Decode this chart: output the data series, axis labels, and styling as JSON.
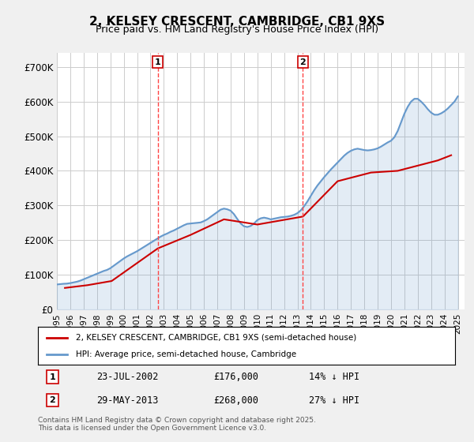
{
  "title": "2, KELSEY CRESCENT, CAMBRIDGE, CB1 9XS",
  "subtitle": "Price paid vs. HM Land Registry's House Price Index (HPI)",
  "ylabel_ticks": [
    "£0",
    "£100K",
    "£200K",
    "£300K",
    "£400K",
    "£500K",
    "£600K",
    "£700K"
  ],
  "ytick_values": [
    0,
    100000,
    200000,
    300000,
    400000,
    500000,
    600000,
    700000
  ],
  "ylim": [
    0,
    740000
  ],
  "xlim_start": 1995.0,
  "xlim_end": 2025.5,
  "bg_color": "#f0f0f0",
  "plot_bg_color": "#ffffff",
  "grid_color": "#cccccc",
  "red_line_color": "#cc0000",
  "blue_line_color": "#6699cc",
  "vline_color": "#ff4444",
  "marker1_x": 2002.55,
  "marker2_x": 2013.41,
  "legend_label_red": "2, KELSEY CRESCENT, CAMBRIDGE, CB1 9XS (semi-detached house)",
  "legend_label_blue": "HPI: Average price, semi-detached house, Cambridge",
  "annotation1_num": "1",
  "annotation1_date": "23-JUL-2002",
  "annotation1_price": "£176,000",
  "annotation1_hpi": "14% ↓ HPI",
  "annotation2_num": "2",
  "annotation2_date": "29-MAY-2013",
  "annotation2_price": "£268,000",
  "annotation2_hpi": "27% ↓ HPI",
  "footer": "Contains HM Land Registry data © Crown copyright and database right 2025.\nThis data is licensed under the Open Government Licence v3.0.",
  "hpi_years": [
    1995.0,
    1995.25,
    1995.5,
    1995.75,
    1996.0,
    1996.25,
    1996.5,
    1996.75,
    1997.0,
    1997.25,
    1997.5,
    1997.75,
    1998.0,
    1998.25,
    1998.5,
    1998.75,
    1999.0,
    1999.25,
    1999.5,
    1999.75,
    2000.0,
    2000.25,
    2000.5,
    2000.75,
    2001.0,
    2001.25,
    2001.5,
    2001.75,
    2002.0,
    2002.25,
    2002.5,
    2002.75,
    2003.0,
    2003.25,
    2003.5,
    2003.75,
    2004.0,
    2004.25,
    2004.5,
    2004.75,
    2005.0,
    2005.25,
    2005.5,
    2005.75,
    2006.0,
    2006.25,
    2006.5,
    2006.75,
    2007.0,
    2007.25,
    2007.5,
    2007.75,
    2008.0,
    2008.25,
    2008.5,
    2008.75,
    2009.0,
    2009.25,
    2009.5,
    2009.75,
    2010.0,
    2010.25,
    2010.5,
    2010.75,
    2011.0,
    2011.25,
    2011.5,
    2011.75,
    2012.0,
    2012.25,
    2012.5,
    2012.75,
    2013.0,
    2013.25,
    2013.5,
    2013.75,
    2014.0,
    2014.25,
    2014.5,
    2014.75,
    2015.0,
    2015.25,
    2015.5,
    2015.75,
    2016.0,
    2016.25,
    2016.5,
    2016.75,
    2017.0,
    2017.25,
    2017.5,
    2017.75,
    2018.0,
    2018.25,
    2018.5,
    2018.75,
    2019.0,
    2019.25,
    2019.5,
    2019.75,
    2020.0,
    2020.25,
    2020.5,
    2020.75,
    2021.0,
    2021.25,
    2021.5,
    2021.75,
    2022.0,
    2022.25,
    2022.5,
    2022.75,
    2023.0,
    2023.25,
    2023.5,
    2023.75,
    2024.0,
    2024.25,
    2024.5,
    2024.75,
    2025.0
  ],
  "hpi_values": [
    72000,
    73000,
    74000,
    74500,
    76000,
    78000,
    80000,
    83000,
    87000,
    91000,
    95000,
    99000,
    103000,
    107000,
    111000,
    114000,
    119000,
    126000,
    133000,
    140000,
    147000,
    153000,
    158000,
    163000,
    168000,
    174000,
    180000,
    186000,
    192000,
    198000,
    204000,
    210000,
    215000,
    219000,
    224000,
    228000,
    233000,
    238000,
    243000,
    247000,
    248000,
    249000,
    250000,
    251000,
    255000,
    260000,
    267000,
    274000,
    281000,
    288000,
    291000,
    289000,
    285000,
    275000,
    261000,
    248000,
    240000,
    238000,
    241000,
    248000,
    258000,
    263000,
    265000,
    263000,
    260000,
    262000,
    264000,
    266000,
    267000,
    268000,
    270000,
    273000,
    278000,
    286000,
    298000,
    312000,
    328000,
    344000,
    358000,
    370000,
    382000,
    393000,
    404000,
    414000,
    424000,
    434000,
    444000,
    452000,
    458000,
    462000,
    464000,
    462000,
    460000,
    459000,
    460000,
    462000,
    465000,
    470000,
    476000,
    482000,
    487000,
    497000,
    515000,
    540000,
    565000,
    585000,
    600000,
    608000,
    608000,
    600000,
    590000,
    578000,
    568000,
    562000,
    562000,
    566000,
    572000,
    580000,
    590000,
    600000,
    615000
  ],
  "price_paid_years": [
    1995.6,
    1997.3,
    1999.1,
    2002.55,
    2005.0,
    2007.5,
    2010.0,
    2013.41,
    2016.0,
    2018.5,
    2020.5,
    2022.0,
    2023.5,
    2024.5
  ],
  "price_paid_values": [
    62000,
    70000,
    82000,
    176000,
    215000,
    260000,
    245000,
    268000,
    370000,
    395000,
    400000,
    415000,
    430000,
    445000
  ]
}
